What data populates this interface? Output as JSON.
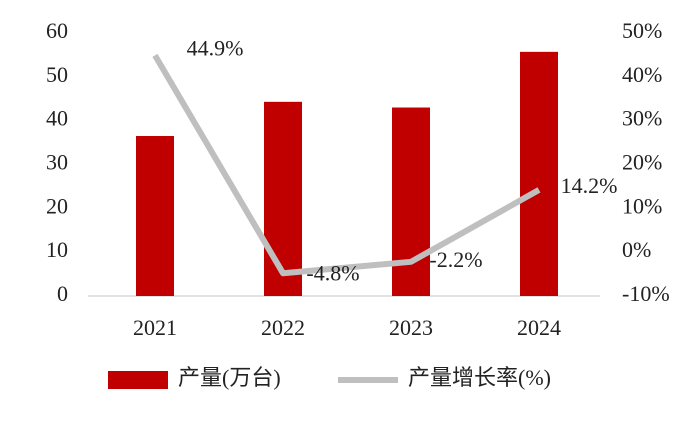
{
  "chart_data": {
    "type": "bar",
    "categories": [
      "2021",
      "2022",
      "2023",
      "2024"
    ],
    "series": [
      {
        "name": "产量(万台)",
        "type": "bar",
        "color": "#c00000",
        "values": [
          36.5,
          44.3,
          43,
          55.7
        ]
      },
      {
        "name": "产量增长率(%)",
        "type": "line",
        "color": "#bfbfbf",
        "axis": "y2",
        "values": [
          44.9,
          -4.8,
          -2.2,
          14.2
        ],
        "value_labels": [
          "44.9%",
          "-4.8%",
          "-2.2%",
          "14.2%"
        ]
      }
    ],
    "ylim": [
      0,
      60
    ],
    "yticks": [
      0,
      10,
      20,
      30,
      40,
      50,
      60
    ],
    "y2lim": [
      -10,
      50
    ],
    "y2ticks": [
      {
        "value": -10,
        "label": "-10%"
      },
      {
        "value": 0,
        "label": "0%"
      },
      {
        "value": 10,
        "label": "10%"
      },
      {
        "value": 20,
        "label": "20%"
      },
      {
        "value": 30,
        "label": "30%"
      },
      {
        "value": 40,
        "label": "40%"
      },
      {
        "value": 50,
        "label": "50%"
      }
    ],
    "legend": "bottom"
  }
}
